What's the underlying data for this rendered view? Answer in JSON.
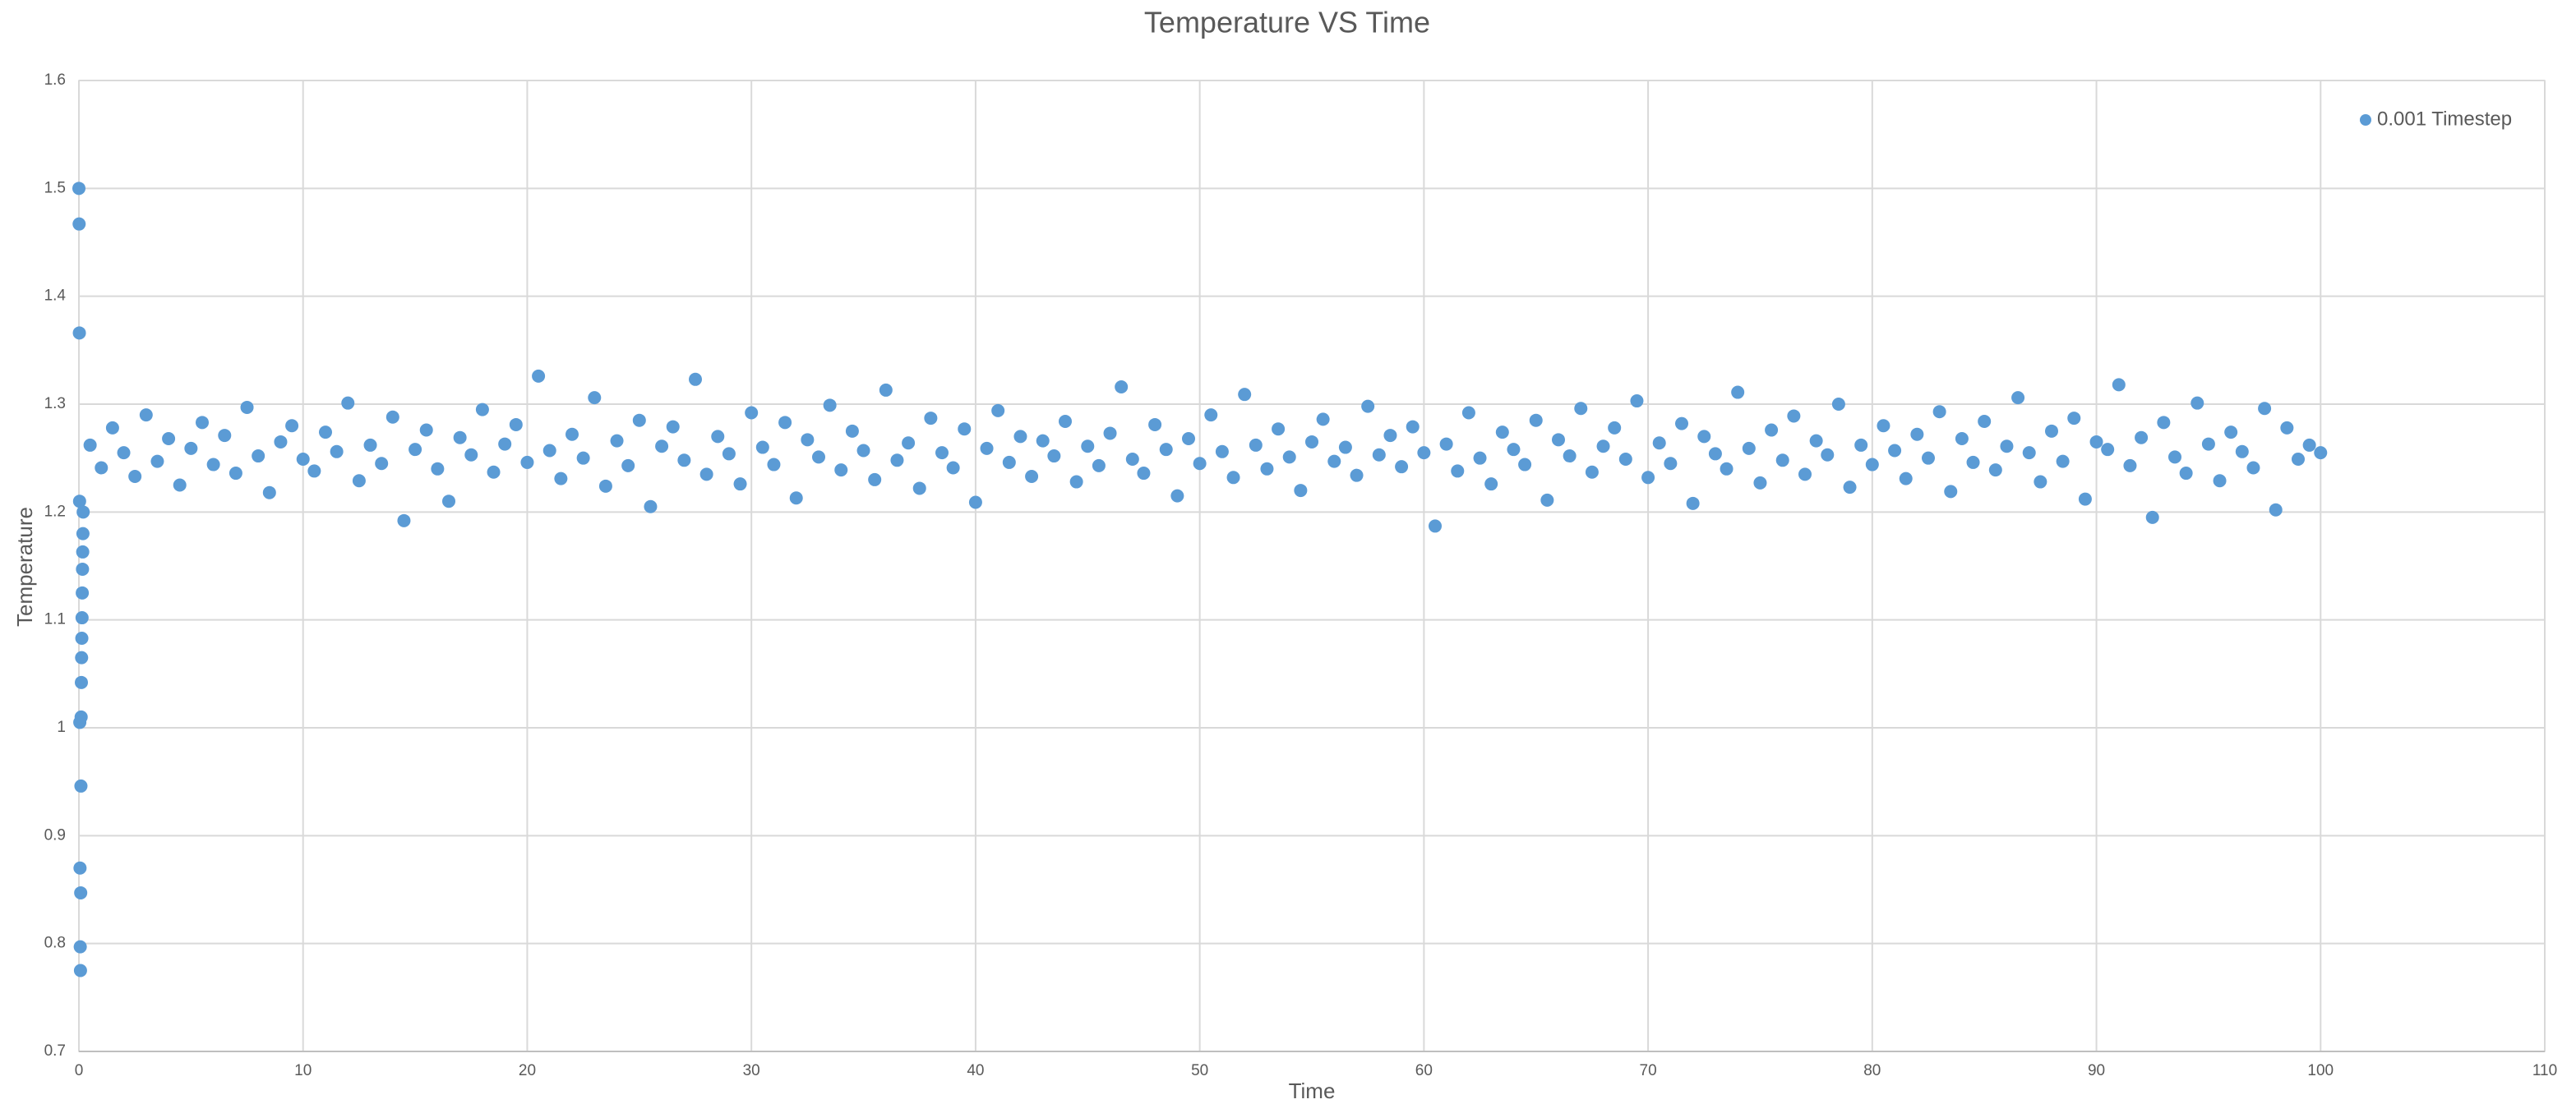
{
  "chart_data": {
    "type": "scatter",
    "title": "Temperature VS Time",
    "x_label": "Time",
    "y_label": "Temperature",
    "xlim": [
      0,
      110
    ],
    "xticks": [
      0,
      10,
      20,
      30,
      40,
      50,
      60,
      70,
      80,
      90,
      100,
      110
    ],
    "ylim": [
      0.7,
      1.6
    ],
    "yticks": [
      0.7,
      0.8,
      0.9,
      1,
      1.1,
      1.2,
      1.3,
      1.4,
      1.5,
      1.6
    ],
    "grid": true,
    "legend": "top-right",
    "series": [
      {
        "name": "0.001 Timestep",
        "color": "#5b9bd5",
        "x": [
          0,
          0.01,
          0.02,
          0.03,
          0.04,
          0.05,
          0.06,
          0.07,
          0.08,
          0.09,
          0.1,
          0.11,
          0.12,
          0.13,
          0.14,
          0.15,
          0.16,
          0.17,
          0.18,
          0.19,
          0.5,
          1,
          1.5,
          2,
          2.5,
          3,
          3.5,
          4,
          4.5,
          5,
          5.5,
          6,
          6.5,
          7,
          7.5,
          8,
          8.5,
          9,
          9.5,
          10,
          10.5,
          11,
          11.5,
          12,
          12.5,
          13,
          13.5,
          14,
          14.5,
          15,
          15.5,
          16,
          16.5,
          17,
          17.5,
          18,
          18.5,
          19,
          19.5,
          20,
          20.5,
          21,
          21.5,
          22,
          22.5,
          23,
          23.5,
          24,
          24.5,
          25,
          25.5,
          26,
          26.5,
          27,
          27.5,
          28,
          28.5,
          29,
          29.5,
          30,
          30.5,
          31,
          31.5,
          32,
          32.5,
          33,
          33.5,
          34,
          34.5,
          35,
          35.5,
          36,
          36.5,
          37,
          37.5,
          38,
          38.5,
          39,
          39.5,
          40,
          40.5,
          41,
          41.5,
          42,
          42.5,
          43,
          43.5,
          44,
          44.5,
          45,
          45.5,
          46,
          46.5,
          47,
          47.5,
          48,
          48.5,
          49,
          49.5,
          50,
          50.5,
          51,
          51.5,
          52,
          52.5,
          53,
          53.5,
          54,
          54.5,
          55,
          55.5,
          56,
          56.5,
          57,
          57.5,
          58,
          58.5,
          59,
          59.5,
          60,
          60.5,
          61,
          61.5,
          62,
          62.5,
          63,
          63.5,
          64,
          64.5,
          65,
          65.5,
          66,
          66.5,
          67,
          67.5,
          68,
          68.5,
          69,
          69.5,
          70,
          70.5,
          71,
          71.5,
          72,
          72.5,
          73,
          73.5,
          74,
          74.5,
          75,
          75.5,
          76,
          76.5,
          77,
          77.5,
          78,
          78.5,
          79,
          79.5,
          80,
          80.5,
          81,
          81.5,
          82,
          82.5,
          83,
          83.5,
          84,
          84.5,
          85,
          85.5,
          86,
          86.5,
          87,
          87.5,
          88,
          88.5,
          89,
          89.5,
          90,
          90.5,
          91,
          91.5,
          92,
          92.5,
          93,
          93.5,
          94,
          94.5,
          95,
          95.5,
          96,
          96.5,
          97,
          97.5,
          98,
          98.5,
          99,
          99.5,
          100
        ],
        "values": [
          1.5,
          1.467,
          1.366,
          1.21,
          1.005,
          0.87,
          0.797,
          0.775,
          0.847,
          0.946,
          1.01,
          1.042,
          1.065,
          1.083,
          1.102,
          1.125,
          1.147,
          1.163,
          1.18,
          1.2,
          1.262,
          1.241,
          1.278,
          1.255,
          1.233,
          1.29,
          1.247,
          1.268,
          1.225,
          1.259,
          1.283,
          1.244,
          1.271,
          1.236,
          1.297,
          1.252,
          1.218,
          1.265,
          1.28,
          1.249,
          1.238,
          1.274,
          1.256,
          1.301,
          1.229,
          1.262,
          1.245,
          1.288,
          1.192,
          1.258,
          1.276,
          1.24,
          1.21,
          1.269,
          1.253,
          1.295,
          1.237,
          1.263,
          1.281,
          1.246,
          1.326,
          1.257,
          1.231,
          1.272,
          1.25,
          1.306,
          1.224,
          1.266,
          1.243,
          1.285,
          1.205,
          1.261,
          1.279,
          1.248,
          1.323,
          1.235,
          1.27,
          1.254,
          1.226,
          1.292,
          1.26,
          1.244,
          1.283,
          1.213,
          1.267,
          1.251,
          1.299,
          1.239,
          1.275,
          1.257,
          1.23,
          1.313,
          1.248,
          1.264,
          1.222,
          1.287,
          1.255,
          1.241,
          1.277,
          1.209,
          1.259,
          1.294,
          1.246,
          1.27,
          1.233,
          1.266,
          1.252,
          1.284,
          1.228,
          1.261,
          1.243,
          1.273,
          1.316,
          1.249,
          1.236,
          1.281,
          1.258,
          1.215,
          1.268,
          1.245,
          1.29,
          1.256,
          1.232,
          1.309,
          1.262,
          1.24,
          1.277,
          1.251,
          1.22,
          1.265,
          1.286,
          1.247,
          1.26,
          1.234,
          1.298,
          1.253,
          1.271,
          1.242,
          1.279,
          1.255,
          1.187,
          1.263,
          1.238,
          1.292,
          1.25,
          1.226,
          1.274,
          1.258,
          1.244,
          1.285,
          1.211,
          1.267,
          1.252,
          1.296,
          1.237,
          1.261,
          1.278,
          1.249,
          1.303,
          1.232,
          1.264,
          1.245,
          1.282,
          1.208,
          1.27,
          1.254,
          1.24,
          1.311,
          1.259,
          1.227,
          1.276,
          1.248,
          1.289,
          1.235,
          1.266,
          1.253,
          1.3,
          1.223,
          1.262,
          1.244,
          1.28,
          1.257,
          1.231,
          1.272,
          1.25,
          1.293,
          1.219,
          1.268,
          1.246,
          1.284,
          1.239,
          1.261,
          1.306,
          1.255,
          1.228,
          1.275,
          1.247,
          1.287,
          1.212,
          1.265,
          1.258,
          1.318,
          1.243,
          1.269,
          1.195,
          1.283,
          1.251,
          1.236,
          1.301,
          1.263,
          1.229,
          1.274,
          1.256,
          1.241,
          1.296,
          1.202,
          1.278,
          1.249,
          1.262,
          1.255
        ]
      }
    ]
  }
}
